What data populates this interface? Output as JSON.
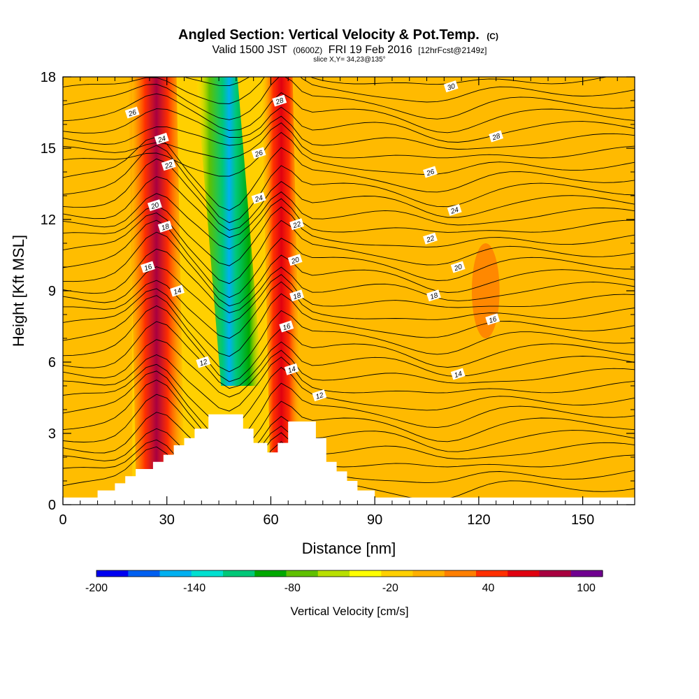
{
  "title": {
    "main": "Angled Section: Vertical Velocity & Pot.Temp.",
    "main_suffix": "(C)",
    "valid_prefix": "Valid 1500 JST",
    "valid_z": "(0600Z)",
    "valid_date": "FRI 19 Feb 2016",
    "valid_fcst": "[12hrFcst@2149z]",
    "slice": "slice X,Y= 34,23@135°"
  },
  "chart_data": {
    "type": "heatmap",
    "xlabel": "Distance [nm]",
    "ylabel": "Height [Kft MSL]",
    "xlim": [
      0,
      165
    ],
    "ylim": [
      0,
      18
    ],
    "x_ticks": [
      0,
      30,
      60,
      90,
      120,
      150
    ],
    "y_ticks": [
      0,
      3,
      6,
      9,
      12,
      15,
      18
    ],
    "grid": false,
    "colorbar": {
      "title": "Vertical Velocity [cm/s]",
      "range": [
        -200,
        110
      ],
      "labels": [
        -200,
        -140,
        -80,
        -20,
        40,
        100
      ],
      "colors": [
        "#0000f0",
        "#0060f0",
        "#00b0f0",
        "#00e0d0",
        "#00c878",
        "#00a800",
        "#60c000",
        "#b8e000",
        "#ffff00",
        "#ffd000",
        "#ffb000",
        "#ff7f00",
        "#ff3000",
        "#e00010",
        "#a80040",
        "#700090"
      ]
    },
    "field_description": "vertical velocity shaded, potential temperature contoured",
    "features": [
      {
        "kind": "updraft",
        "x_center": 27,
        "width": 14,
        "y_range": [
          0,
          18
        ],
        "value": 95
      },
      {
        "kind": "updraft",
        "x_center": 63,
        "width": 9,
        "y_range": [
          2,
          18
        ],
        "value": 55
      },
      {
        "kind": "downdraft",
        "x_center": 48,
        "width": 12,
        "y_range": [
          5,
          18
        ],
        "value": -150
      },
      {
        "kind": "weak_up",
        "x_center": 122,
        "width": 8,
        "y_range": [
          7,
          11
        ],
        "value": 40
      }
    ],
    "contour_labels": [
      {
        "value": "26",
        "x": 20,
        "y": 16.5
      },
      {
        "value": "24",
        "x": 28.5,
        "y": 15.4
      },
      {
        "value": "22",
        "x": 30.5,
        "y": 14.3
      },
      {
        "value": "20",
        "x": 26.5,
        "y": 12.6
      },
      {
        "value": "18",
        "x": 29.5,
        "y": 11.7
      },
      {
        "value": "16",
        "x": 24.5,
        "y": 10.0
      },
      {
        "value": "14",
        "x": 33,
        "y": 9.0
      },
      {
        "value": "12",
        "x": 40.5,
        "y": 6.0
      },
      {
        "value": "28",
        "x": 62.5,
        "y": 17.0
      },
      {
        "value": "26",
        "x": 56.5,
        "y": 14.8
      },
      {
        "value": "24",
        "x": 56.5,
        "y": 12.9
      },
      {
        "value": "22",
        "x": 67.5,
        "y": 11.8
      },
      {
        "value": "20",
        "x": 67,
        "y": 10.3
      },
      {
        "value": "18",
        "x": 67.5,
        "y": 8.8
      },
      {
        "value": "16",
        "x": 64.5,
        "y": 7.5
      },
      {
        "value": "14",
        "x": 66,
        "y": 5.7
      },
      {
        "value": "12",
        "x": 74,
        "y": 4.6
      },
      {
        "value": "30",
        "x": 112,
        "y": 17.6
      },
      {
        "value": "28",
        "x": 125,
        "y": 15.5
      },
      {
        "value": "26",
        "x": 106,
        "y": 14.0
      },
      {
        "value": "24",
        "x": 113,
        "y": 12.4
      },
      {
        "value": "22",
        "x": 106,
        "y": 11.2
      },
      {
        "value": "20",
        "x": 114,
        "y": 10.0
      },
      {
        "value": "18",
        "x": 107,
        "y": 8.8
      },
      {
        "value": "16",
        "x": 124,
        "y": 7.8
      },
      {
        "value": "14",
        "x": 114,
        "y": 5.5
      }
    ],
    "terrain_profile": {
      "x": [
        0,
        10,
        15,
        18,
        21,
        26,
        29,
        32,
        35,
        38,
        42,
        49,
        52,
        55,
        59,
        62,
        65,
        70,
        73,
        76,
        79,
        82,
        85,
        90,
        165
      ],
      "y": [
        0.3,
        0.6,
        0.9,
        1.2,
        1.5,
        1.8,
        2.1,
        2.5,
        2.8,
        3.2,
        3.8,
        3.8,
        3.2,
        2.6,
        2.2,
        2.6,
        3.5,
        3.5,
        2.8,
        1.8,
        1.4,
        1.0,
        0.6,
        0.3,
        0.3
      ]
    }
  }
}
